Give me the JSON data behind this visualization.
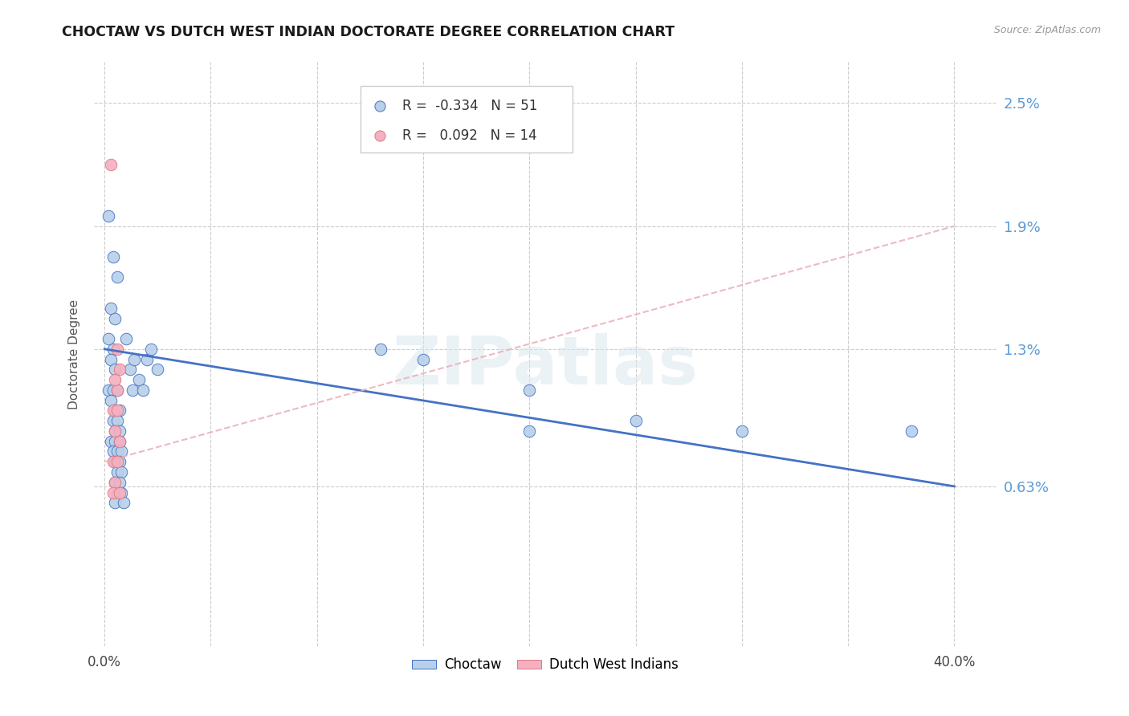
{
  "title": "CHOCTAW VS DUTCH WEST INDIAN DOCTORATE DEGREE CORRELATION CHART",
  "source": "Source: ZipAtlas.com",
  "ylabel": "Doctorate Degree",
  "y_ticks": [
    0.0063,
    0.013,
    0.019,
    0.025
  ],
  "y_tick_labels": [
    "0.63%",
    "1.3%",
    "1.9%",
    "2.5%"
  ],
  "x_ticks": [
    0.0,
    0.05,
    0.1,
    0.15,
    0.2,
    0.25,
    0.3,
    0.35,
    0.4
  ],
  "x_tick_labels": [
    "0.0%",
    "",
    "",
    "",
    "",
    "",
    "",
    "",
    "40.0%"
  ],
  "xlim": [
    -0.005,
    0.42
  ],
  "ylim": [
    -0.0015,
    0.027
  ],
  "background_color": "#ffffff",
  "grid_color": "#cccccc",
  "watermark": "ZIPatlas",
  "legend_R_choctaw": "-0.334",
  "legend_N_choctaw": "51",
  "legend_R_dutch": "0.092",
  "legend_N_dutch": "14",
  "choctaw_color": "#b8d0e8",
  "dutch_color": "#f4b0c0",
  "choctaw_line_color": "#4472c4",
  "dutch_line_color": "#e07880",
  "right_label_color": "#5b9bd5",
  "choctaw_scatter": [
    [
      0.002,
      0.0195
    ],
    [
      0.004,
      0.0175
    ],
    [
      0.006,
      0.0165
    ],
    [
      0.003,
      0.015
    ],
    [
      0.005,
      0.0145
    ],
    [
      0.002,
      0.0135
    ],
    [
      0.004,
      0.013
    ],
    [
      0.003,
      0.0125
    ],
    [
      0.005,
      0.012
    ],
    [
      0.002,
      0.011
    ],
    [
      0.004,
      0.011
    ],
    [
      0.006,
      0.011
    ],
    [
      0.003,
      0.0105
    ],
    [
      0.005,
      0.01
    ],
    [
      0.007,
      0.01
    ],
    [
      0.004,
      0.0095
    ],
    [
      0.006,
      0.0095
    ],
    [
      0.005,
      0.009
    ],
    [
      0.007,
      0.009
    ],
    [
      0.003,
      0.0085
    ],
    [
      0.005,
      0.0085
    ],
    [
      0.007,
      0.0085
    ],
    [
      0.004,
      0.008
    ],
    [
      0.006,
      0.008
    ],
    [
      0.008,
      0.008
    ],
    [
      0.005,
      0.0075
    ],
    [
      0.007,
      0.0075
    ],
    [
      0.006,
      0.007
    ],
    [
      0.008,
      0.007
    ],
    [
      0.005,
      0.0065
    ],
    [
      0.007,
      0.0065
    ],
    [
      0.006,
      0.006
    ],
    [
      0.008,
      0.006
    ],
    [
      0.005,
      0.0055
    ],
    [
      0.009,
      0.0055
    ],
    [
      0.01,
      0.0135
    ],
    [
      0.012,
      0.012
    ],
    [
      0.013,
      0.011
    ],
    [
      0.014,
      0.0125
    ],
    [
      0.016,
      0.0115
    ],
    [
      0.018,
      0.011
    ],
    [
      0.02,
      0.0125
    ],
    [
      0.022,
      0.013
    ],
    [
      0.025,
      0.012
    ],
    [
      0.13,
      0.013
    ],
    [
      0.15,
      0.0125
    ],
    [
      0.2,
      0.011
    ],
    [
      0.2,
      0.009
    ],
    [
      0.25,
      0.0095
    ],
    [
      0.3,
      0.009
    ],
    [
      0.38,
      0.009
    ]
  ],
  "dutch_scatter": [
    [
      0.003,
      0.022
    ],
    [
      0.006,
      0.013
    ],
    [
      0.007,
      0.012
    ],
    [
      0.006,
      0.011
    ],
    [
      0.005,
      0.0115
    ],
    [
      0.004,
      0.01
    ],
    [
      0.006,
      0.01
    ],
    [
      0.005,
      0.009
    ],
    [
      0.007,
      0.0085
    ],
    [
      0.004,
      0.0075
    ],
    [
      0.006,
      0.0075
    ],
    [
      0.005,
      0.0065
    ],
    [
      0.004,
      0.006
    ],
    [
      0.007,
      0.006
    ]
  ],
  "choctaw_line_x": [
    0.0,
    0.4
  ],
  "choctaw_line_y": [
    0.013,
    0.0063
  ],
  "dutch_line_x": [
    0.0,
    0.4
  ],
  "dutch_line_y": [
    0.0075,
    0.019
  ]
}
